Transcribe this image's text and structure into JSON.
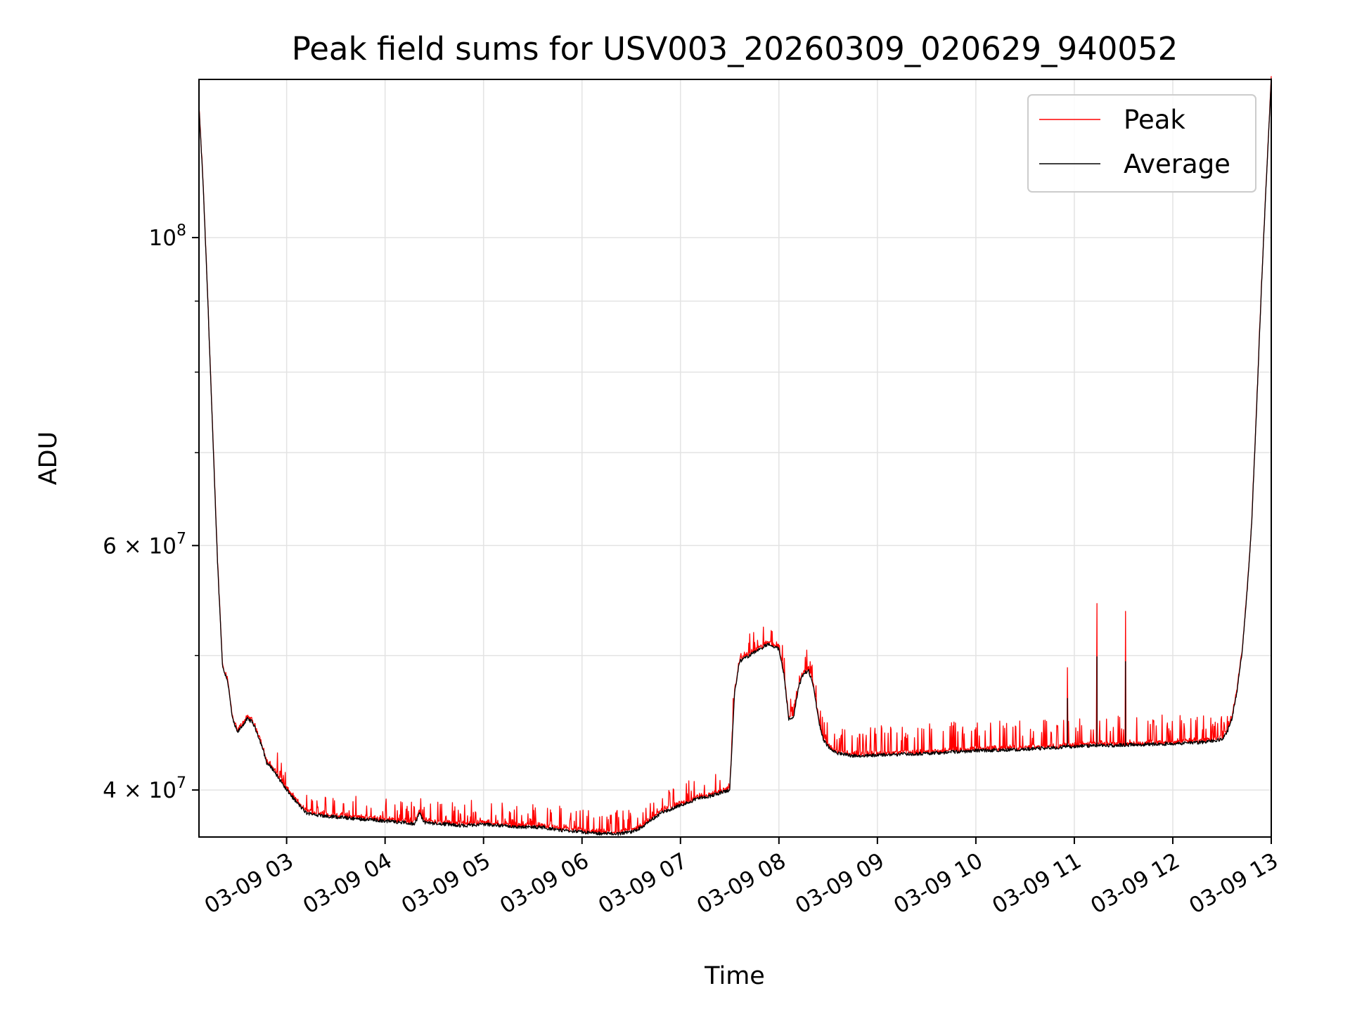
{
  "chart_data": {
    "type": "line",
    "title": "Peak field sums for USV003_20260309_020629_940052",
    "xlabel": "Time",
    "ylabel": "ADU",
    "yscale": "log",
    "ylim": [
      37000000,
      130000000
    ],
    "xlim_hours": [
      2.11,
      13.0
    ],
    "grid": true,
    "legend_position": "upper right",
    "x_ticks": [
      {
        "value": 3,
        "label": "03-09 03"
      },
      {
        "value": 4,
        "label": "03-09 04"
      },
      {
        "value": 5,
        "label": "03-09 05"
      },
      {
        "value": 6,
        "label": "03-09 06"
      },
      {
        "value": 7,
        "label": "03-09 07"
      },
      {
        "value": 8,
        "label": "03-09 08"
      },
      {
        "value": 9,
        "label": "03-09 09"
      },
      {
        "value": 10,
        "label": "03-09 10"
      },
      {
        "value": 11,
        "label": "03-09 11"
      },
      {
        "value": 12,
        "label": "03-09 12"
      },
      {
        "value": 13,
        "label": "03-09 13"
      }
    ],
    "y_ticks": [
      {
        "value": 40000000,
        "mant": "4",
        "exp": "7"
      },
      {
        "value": 60000000,
        "mant": "6",
        "exp": "7"
      },
      {
        "value": 100000000,
        "mant": "",
        "exp": "8"
      }
    ],
    "y_minor_ticks": [
      50000000,
      70000000,
      80000000,
      90000000
    ],
    "series": [
      {
        "name": "Peak",
        "color": "#ff0000",
        "note": "peak follows the average baseline with frequent upward spikes",
        "spikes": [
          [
            10.93,
            49000000
          ],
          [
            11.23,
            54500000
          ],
          [
            11.52,
            53800000
          ]
        ]
      },
      {
        "name": "Average",
        "color": "#000000",
        "x": [
          2.11,
          2.15,
          2.2,
          2.25,
          2.3,
          2.35,
          2.4,
          2.45,
          2.5,
          2.55,
          2.6,
          2.65,
          2.7,
          2.75,
          2.8,
          2.85,
          2.9,
          2.95,
          3.0,
          3.1,
          3.2,
          3.3,
          3.4,
          3.6,
          3.8,
          4.0,
          4.2,
          4.3,
          4.35,
          4.4,
          4.6,
          4.8,
          5.0,
          5.2,
          5.4,
          5.6,
          5.8,
          6.0,
          6.2,
          6.4,
          6.5,
          6.6,
          6.8,
          7.0,
          7.2,
          7.3,
          7.4,
          7.5,
          7.55,
          7.6,
          7.7,
          7.8,
          7.9,
          8.0,
          8.05,
          8.1,
          8.15,
          8.2,
          8.25,
          8.3,
          8.35,
          8.4,
          8.45,
          8.5,
          8.6,
          8.8,
          9.0,
          9.5,
          10.0,
          10.5,
          11.0,
          11.5,
          12.0,
          12.3,
          12.5,
          12.55,
          12.6,
          12.65,
          12.7,
          12.75,
          12.8,
          12.85,
          12.9,
          12.95,
          13.0
        ],
        "values": [
          124000000,
          110000000,
          90000000,
          72000000,
          58000000,
          49000000,
          48000000,
          45000000,
          44000000,
          44500000,
          45000000,
          44800000,
          44000000,
          43000000,
          41800000,
          41500000,
          41000000,
          40500000,
          40000000,
          39200000,
          38500000,
          38400000,
          38300000,
          38200000,
          38100000,
          38000000,
          37900000,
          37800000,
          38500000,
          37900000,
          37800000,
          37700000,
          37800000,
          37700000,
          37600000,
          37600000,
          37400000,
          37300000,
          37200000,
          37200000,
          37300000,
          37600000,
          38500000,
          39000000,
          39500000,
          39600000,
          39800000,
          40000000,
          47000000,
          49500000,
          50000000,
          50500000,
          51000000,
          50500000,
          48500000,
          45000000,
          45200000,
          47500000,
          48500000,
          48800000,
          47500000,
          45000000,
          43500000,
          43000000,
          42500000,
          42300000,
          42400000,
          42500000,
          42700000,
          42800000,
          43000000,
          43100000,
          43200000,
          43300000,
          43500000,
          44000000,
          45000000,
          47000000,
          50000000,
          55000000,
          62000000,
          75000000,
          92000000,
          110000000,
          130000000
        ]
      }
    ]
  }
}
